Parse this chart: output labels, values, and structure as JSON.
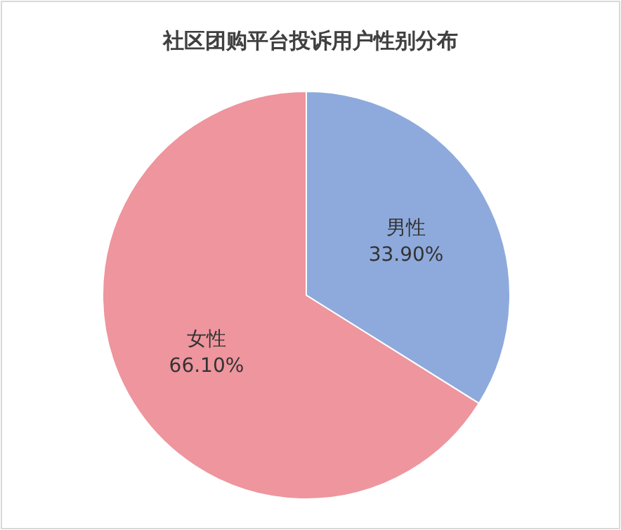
{
  "chart_data": {
    "type": "pie",
    "title": "社区团购平台投诉用户性别分布",
    "categories": [
      "男性",
      "女性"
    ],
    "values": [
      33.9,
      66.1
    ],
    "value_labels": [
      "33.90%",
      "66.10%"
    ],
    "colors": [
      "#8eaadc",
      "#ee959e"
    ]
  }
}
